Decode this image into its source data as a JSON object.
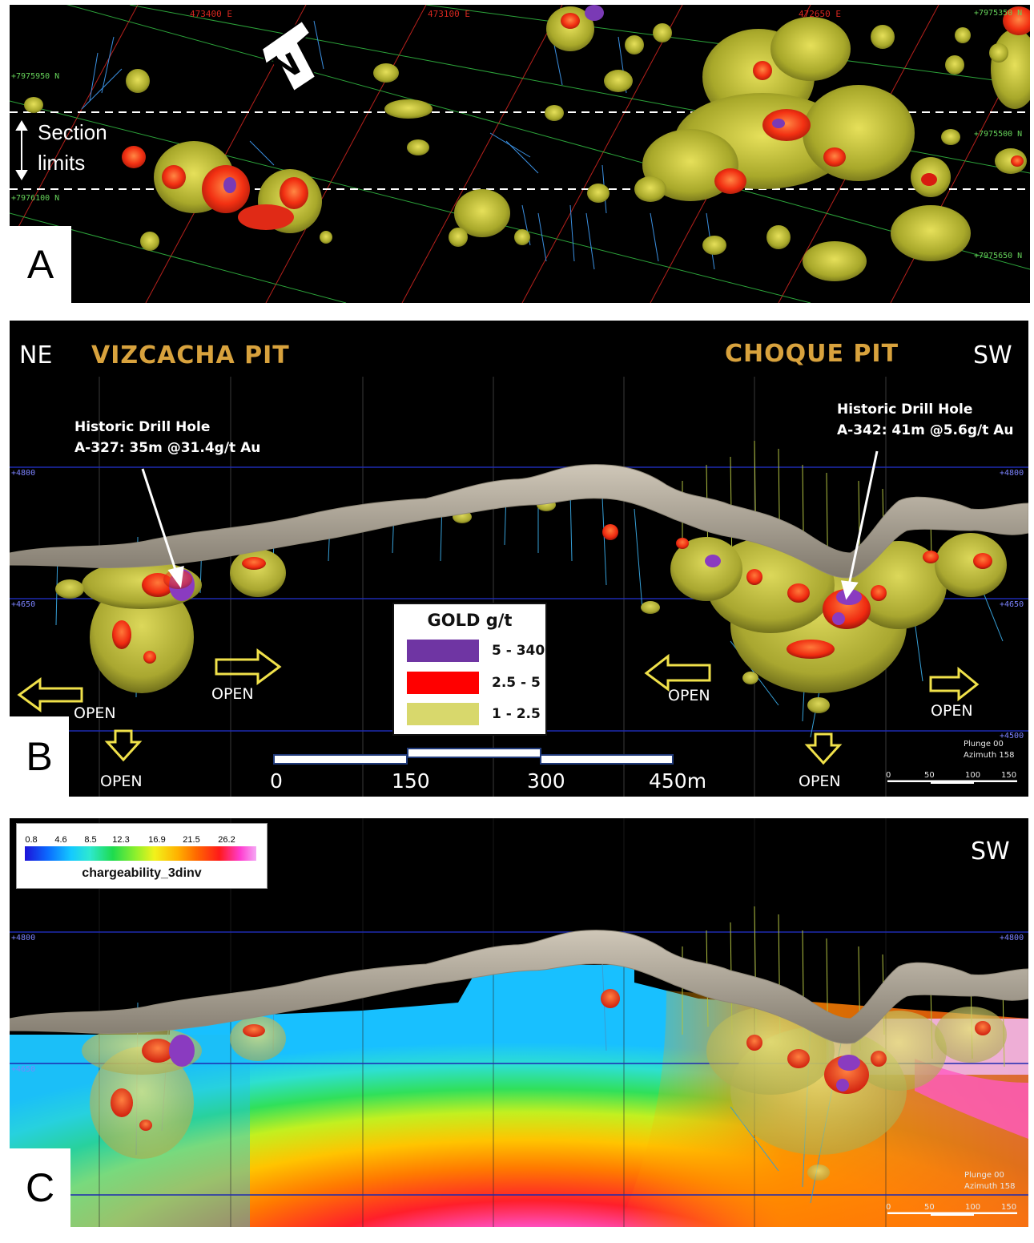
{
  "panel_a": {
    "letter": "A",
    "easting_labels": [
      "473400 E",
      "473100 E",
      "472650 E"
    ],
    "northing_left": [
      "+7975950 N",
      "+7976100 N"
    ],
    "northing_right": [
      "+7975350 N",
      "+7975500 N",
      "+7975650 N"
    ],
    "north_label": "N",
    "section_label_line1": "Section",
    "section_label_line2": "limits"
  },
  "panel_b": {
    "letter": "B",
    "dir_left": "NE",
    "dir_right": "SW",
    "pit_left": "VIZCACHA PIT",
    "pit_right": "CHOQUE PIT",
    "callout_left": {
      "line1": "Historic Drill Hole",
      "line2": "A-327: 35m @31.4g/t Au"
    },
    "callout_right": {
      "line1": "Historic Drill Hole",
      "line2": "A-342: 41m @5.6g/t Au"
    },
    "elev_labels": [
      "+4800",
      "+4650",
      "+4500"
    ],
    "open_label": "OPEN",
    "legend": {
      "title": "GOLD g/t",
      "items": [
        {
          "label": "5 - 340",
          "color": "#6f35a3"
        },
        {
          "label": "2.5 - 5",
          "color": "#ff0000"
        },
        {
          "label": "1 - 2.5",
          "color": "#d8d86c"
        }
      ]
    },
    "scale_labels": [
      "0",
      "150",
      "300",
      "450m"
    ],
    "plunge": "Plunge 00",
    "azimuth": "Azimuth 158",
    "small_scale": [
      "0",
      "50",
      "100",
      "150"
    ]
  },
  "panel_c": {
    "letter": "C",
    "dir_right": "SW",
    "elev_labels": [
      "+4800",
      "+4650"
    ],
    "legend": {
      "ticks": [
        "0.8",
        "4.6",
        "8.5",
        "12.3",
        "16.9",
        "21.5",
        "26.2"
      ],
      "name": "chargeability_3dinv"
    },
    "plunge": "Plunge 00",
    "azimuth": "Azimuth 158",
    "small_scale": [
      "0",
      "50",
      "100",
      "150"
    ]
  }
}
